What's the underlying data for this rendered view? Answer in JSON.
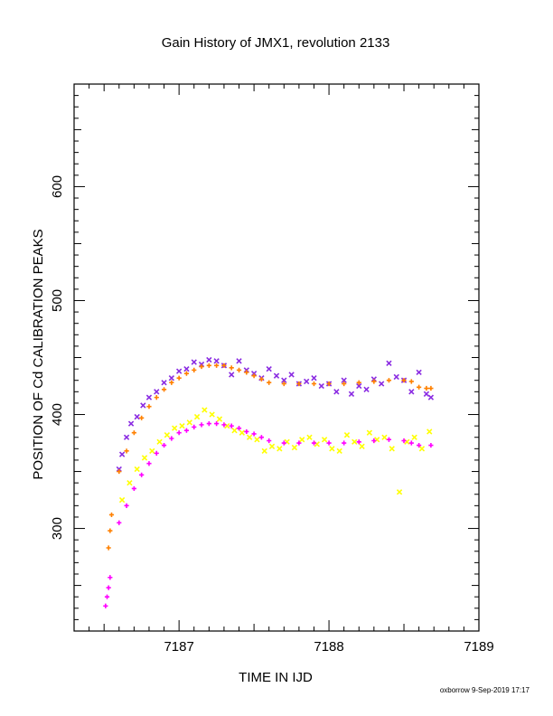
{
  "chart_data": {
    "type": "scatter",
    "title": "Gain History of JMX1, revolution 2133",
    "xlabel": "TIME IN IJD",
    "ylabel": "POSITION OF Cd CALIBRATION PEAKS",
    "xlim": [
      7186.3,
      7189.0
    ],
    "ylim": [
      210,
      690
    ],
    "x_ticks": [
      "7187",
      "7188",
      "7189"
    ],
    "y_ticks": [
      "300",
      "400",
      "500",
      "600"
    ],
    "grid": false,
    "legend": "none",
    "series": [
      {
        "color": "#8a2be2",
        "marker": "x",
        "x": [
          7186.6,
          7186.62,
          7186.65,
          7186.68,
          7186.72,
          7186.76,
          7186.8,
          7186.85,
          7186.9,
          7186.95,
          7187.0,
          7187.05,
          7187.1,
          7187.15,
          7187.2,
          7187.25,
          7187.3,
          7187.35,
          7187.4,
          7187.45,
          7187.5,
          7187.55,
          7187.6,
          7187.65,
          7187.7,
          7187.75,
          7187.8,
          7187.85,
          7187.9,
          7187.95,
          7188.0,
          7188.05,
          7188.1,
          7188.15,
          7188.2,
          7188.25,
          7188.3,
          7188.35,
          7188.4,
          7188.45,
          7188.5,
          7188.55,
          7188.6,
          7188.65,
          7188.68
        ],
        "y": [
          352,
          365,
          380,
          392,
          398,
          408,
          415,
          420,
          428,
          432,
          438,
          440,
          446,
          444,
          448,
          447,
          443,
          435,
          447,
          439,
          436,
          432,
          440,
          434,
          430,
          435,
          427,
          429,
          432,
          425,
          427,
          420,
          430,
          418,
          425,
          422,
          431,
          427,
          445,
          433,
          430,
          420,
          437,
          418,
          415
        ]
      },
      {
        "color": "#ff8000",
        "marker": "+",
        "x": [
          7186.53,
          7186.54,
          7186.55,
          7186.6,
          7186.65,
          7186.7,
          7186.75,
          7186.8,
          7186.85,
          7186.9,
          7186.95,
          7187.0,
          7187.05,
          7187.1,
          7187.15,
          7187.2,
          7187.25,
          7187.3,
          7187.35,
          7187.4,
          7187.45,
          7187.5,
          7187.55,
          7187.6,
          7187.7,
          7187.8,
          7187.9,
          7188.0,
          7188.1,
          7188.2,
          7188.3,
          7188.4,
          7188.5,
          7188.55,
          7188.6,
          7188.65,
          7188.68
        ],
        "y": [
          283,
          298,
          312,
          350,
          368,
          384,
          397,
          407,
          415,
          422,
          428,
          432,
          436,
          439,
          442,
          443,
          443,
          443,
          441,
          439,
          437,
          434,
          431,
          428,
          427,
          427,
          427,
          427,
          427,
          428,
          429,
          430,
          430,
          429,
          424,
          423,
          423
        ]
      },
      {
        "color": "#ffff00",
        "marker": "x",
        "x": [
          7186.62,
          7186.67,
          7186.72,
          7186.77,
          7186.82,
          7186.87,
          7186.92,
          7186.97,
          7187.02,
          7187.07,
          7187.12,
          7187.17,
          7187.22,
          7187.27,
          7187.32,
          7187.37,
          7187.42,
          7187.47,
          7187.52,
          7187.57,
          7187.62,
          7187.67,
          7187.72,
          7187.77,
          7187.82,
          7187.87,
          7187.92,
          7187.97,
          7188.02,
          7188.07,
          7188.12,
          7188.17,
          7188.22,
          7188.27,
          7188.32,
          7188.37,
          7188.42,
          7188.47,
          7188.52,
          7188.57,
          7188.62,
          7188.67
        ],
        "y": [
          325,
          340,
          352,
          362,
          368,
          376,
          382,
          388,
          390,
          393,
          398,
          404,
          400,
          396,
          390,
          386,
          384,
          380,
          378,
          368,
          372,
          370,
          376,
          371,
          378,
          380,
          374,
          378,
          370,
          368,
          382,
          376,
          372,
          384,
          378,
          380,
          370,
          332,
          376,
          380,
          370,
          385
        ]
      },
      {
        "color": "#ff00ff",
        "marker": "+",
        "x": [
          7186.51,
          7186.52,
          7186.53,
          7186.54,
          7186.6,
          7186.65,
          7186.7,
          7186.75,
          7186.8,
          7186.85,
          7186.9,
          7186.95,
          7187.0,
          7187.05,
          7187.1,
          7187.15,
          7187.2,
          7187.25,
          7187.3,
          7187.35,
          7187.4,
          7187.45,
          7187.5,
          7187.55,
          7187.6,
          7187.7,
          7187.8,
          7187.9,
          7188.0,
          7188.1,
          7188.2,
          7188.3,
          7188.4,
          7188.5,
          7188.55,
          7188.6,
          7188.68
        ],
        "y": [
          232,
          240,
          248,
          257,
          305,
          320,
          335,
          347,
          357,
          366,
          373,
          379,
          384,
          386,
          389,
          391,
          392,
          392,
          391,
          390,
          388,
          385,
          383,
          380,
          377,
          375,
          375,
          375,
          375,
          375,
          376,
          377,
          378,
          377,
          375,
          373,
          373
        ]
      }
    ]
  },
  "footer": {
    "credit": "oxborrow  9-Sep-2019 17:17"
  }
}
